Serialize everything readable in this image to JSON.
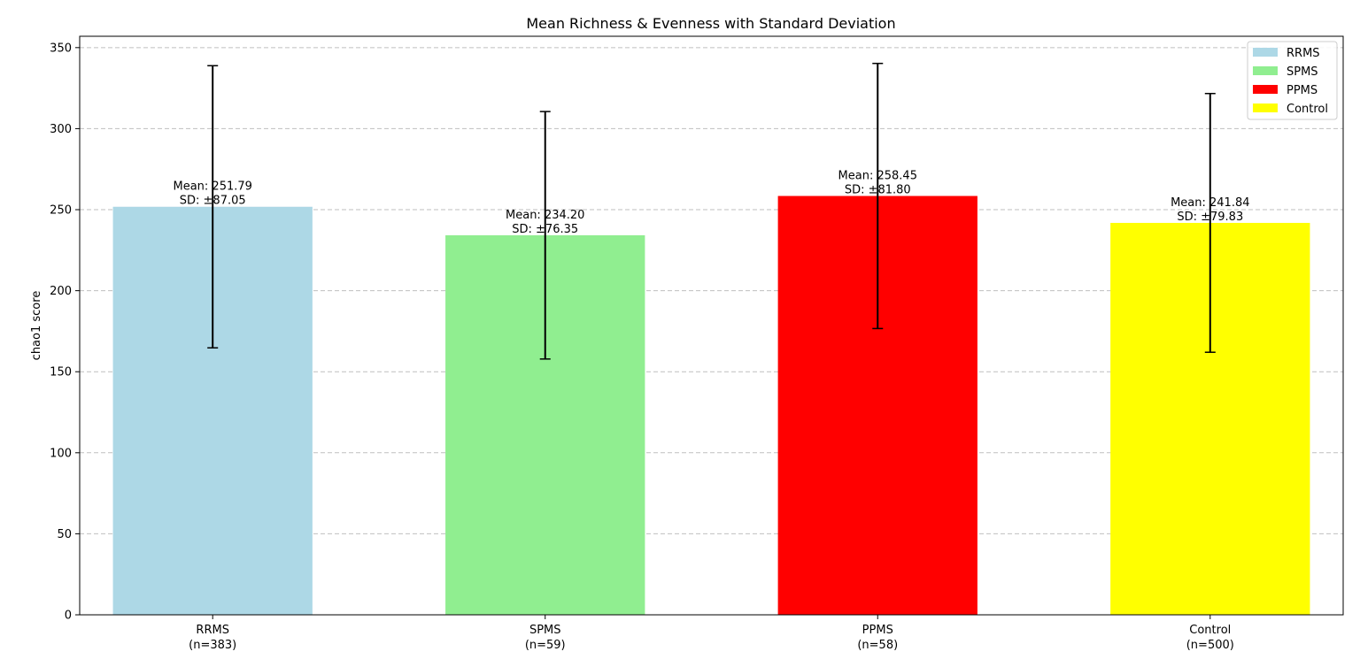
{
  "chart_data": {
    "type": "bar",
    "title": "Mean Richness & Evenness with Standard Deviation",
    "xlabel": "",
    "ylabel": "chao1 score",
    "ylim": [
      0,
      357
    ],
    "yticks": [
      0,
      50,
      100,
      150,
      200,
      250,
      300,
      350
    ],
    "grid": "y-dashed",
    "legend_position": "top-right",
    "categories": [
      "RRMS",
      "SPMS",
      "PPMS",
      "Control"
    ],
    "category_counts": [
      "(n=383)",
      "(n=59)",
      "(n=58)",
      "(n=500)"
    ],
    "values": [
      251.79,
      234.2,
      258.45,
      241.84
    ],
    "sd": [
      87.05,
      76.35,
      81.8,
      79.83
    ],
    "colors": [
      "#add8e6",
      "#90ee90",
      "#ff0000",
      "#ffff00"
    ],
    "mean_labels": [
      "Mean: 251.79",
      "Mean: 234.20",
      "Mean: 258.45",
      "Mean: 241.84"
    ],
    "sd_labels": [
      "SD: ±87.05",
      "SD: ±76.35",
      "SD: ±81.80",
      "SD: ±79.83"
    ],
    "legend": [
      "RRMS",
      "SPMS",
      "PPMS",
      "Control"
    ]
  }
}
